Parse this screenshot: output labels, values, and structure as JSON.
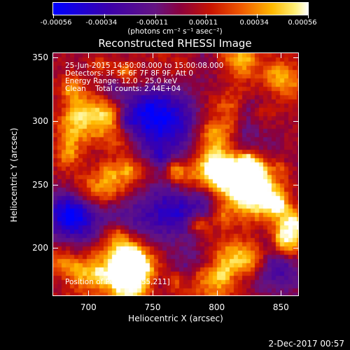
{
  "colorbar": {
    "min": -0.00056,
    "max": 0.00056,
    "tick_labels": [
      "-0.00056",
      "-0.00034",
      "-0.00011",
      "0.00011",
      "0.00034",
      "0.00056"
    ],
    "units": "(photons cm⁻² s⁻¹ asec⁻²)"
  },
  "title": "Reconstructed RHESSI Image",
  "annotations": {
    "line1": "25-Jun-2015 14:50:08.000 to 15:00:08.000",
    "line2": "Detectors: 3F 5F 6F 7F 8F 9F, Att 0",
    "line3": "Energy Range: 12.0 - 25.0 keV",
    "line4": "Clean    Total counts: 2.44E+04",
    "peak": "Position of Peak = [855,211]"
  },
  "axes": {
    "xlabel": "Heliocentric X (arcsec)",
    "ylabel": "Heliocentric Y (arcsec)",
    "xlim": [
      672,
      864
    ],
    "ylim": [
      162,
      354
    ],
    "xticks": [
      700,
      750,
      800,
      850
    ],
    "yticks": [
      200,
      250,
      300,
      350
    ]
  },
  "timestamp": "2-Dec-2017 00:57"
}
